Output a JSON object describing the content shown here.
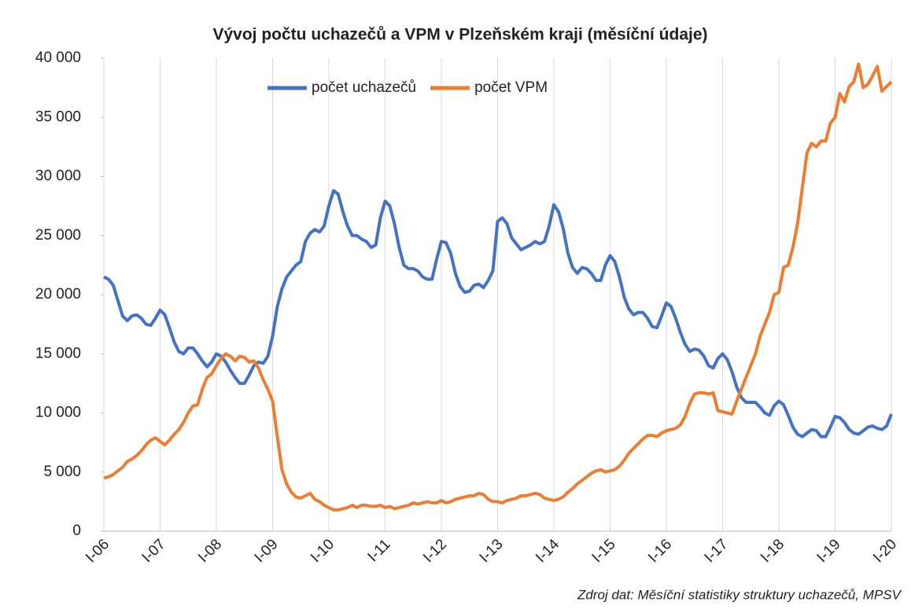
{
  "chart_data": {
    "type": "line",
    "title": "Vývoj počtu uchazečů a VPM v Plzeňském kraji (měsíční údaje)",
    "source": "Zdroj dat: Měsíční statistiky struktury uchazečů, MPSV",
    "legend": "top",
    "grid": "x",
    "categories": [
      "I-06",
      null,
      null,
      null,
      null,
      null,
      null,
      null,
      null,
      null,
      null,
      null,
      "I-07",
      null,
      null,
      null,
      null,
      null,
      null,
      null,
      null,
      null,
      null,
      null,
      "I-08",
      null,
      null,
      null,
      null,
      null,
      null,
      null,
      null,
      null,
      null,
      null,
      "I-09",
      null,
      null,
      null,
      null,
      null,
      null,
      null,
      null,
      null,
      null,
      null,
      "I-10",
      null,
      null,
      null,
      null,
      null,
      null,
      null,
      null,
      null,
      null,
      null,
      "I-11",
      null,
      null,
      null,
      null,
      null,
      null,
      null,
      null,
      null,
      null,
      null,
      "I-12",
      null,
      null,
      null,
      null,
      null,
      null,
      null,
      null,
      null,
      null,
      null,
      "I-13",
      null,
      null,
      null,
      null,
      null,
      null,
      null,
      null,
      null,
      null,
      null,
      "I-14",
      null,
      null,
      null,
      null,
      null,
      null,
      null,
      null,
      null,
      null,
      null,
      "I-15",
      null,
      null,
      null,
      null,
      null,
      null,
      null,
      null,
      null,
      null,
      null,
      "I-16",
      null,
      null,
      null,
      null,
      null,
      null,
      null,
      null,
      null,
      null,
      null,
      "I-17",
      null,
      null,
      null,
      null,
      null,
      null,
      null,
      null,
      null,
      null,
      null,
      "I-18",
      null,
      null,
      null,
      null,
      null,
      null,
      null,
      null,
      null,
      null,
      null,
      "I-19",
      null,
      null,
      null,
      null,
      null,
      null,
      null,
      null,
      null,
      null,
      null,
      "I-20"
    ],
    "series": [
      {
        "name": "počet uchazečů",
        "color": "#4472c4",
        "values": [
          21500,
          21300,
          20800,
          19500,
          18200,
          17800,
          18200,
          18300,
          18000,
          17500,
          17400,
          18000,
          18700,
          18300,
          17200,
          16000,
          15200,
          15000,
          15500,
          15500,
          15000,
          14400,
          13900,
          14300,
          15000,
          14800,
          14300,
          13600,
          13000,
          12500,
          12500,
          13200,
          14000,
          14300,
          14200,
          14800,
          16500,
          19000,
          20500,
          21500,
          22000,
          22500,
          22800,
          24500,
          25200,
          25500,
          25300,
          25800,
          27500,
          28800,
          28500,
          27000,
          25800,
          25000,
          25000,
          24700,
          24500,
          24000,
          24200,
          26500,
          27900,
          27500,
          26000,
          24000,
          22500,
          22200,
          22200,
          22000,
          21500,
          21300,
          21300,
          23000,
          24500,
          24400,
          23500,
          21800,
          20700,
          20200,
          20300,
          20800,
          20900,
          20600,
          21200,
          22000,
          26200,
          26500,
          26000,
          24800,
          24300,
          23800,
          24000,
          24200,
          24500,
          24300,
          24500,
          25800,
          27600,
          27000,
          25600,
          23500,
          22300,
          21800,
          22300,
          22200,
          21800,
          21200,
          21200,
          22500,
          23300,
          22800,
          21500,
          19800,
          18800,
          18300,
          18500,
          18500,
          18000,
          17300,
          17200,
          18200,
          19300,
          19000,
          18000,
          16800,
          15800,
          15200,
          15400,
          15300,
          14800,
          14000,
          13800,
          14600,
          15000,
          14500,
          13500,
          12200,
          11300,
          10900,
          10900,
          10900,
          10500,
          10000,
          9800,
          10600,
          11000,
          10700,
          9800,
          8800,
          8200,
          8000,
          8300,
          8600,
          8500,
          8000,
          8000,
          8800,
          9700,
          9600,
          9200,
          8600,
          8300,
          8200,
          8500,
          8800,
          8900,
          8700,
          8600,
          8900,
          9900
        ]
      },
      {
        "name": "počet VPM",
        "color": "#ed7d31",
        "values": [
          4500,
          4600,
          4800,
          5100,
          5400,
          5900,
          6100,
          6400,
          6800,
          7300,
          7700,
          7900,
          7600,
          7300,
          7700,
          8200,
          8600,
          9200,
          10000,
          10600,
          10700,
          12000,
          13000,
          13300,
          14000,
          14600,
          15000,
          14800,
          14400,
          14800,
          14700,
          14300,
          14400,
          13800,
          12800,
          12000,
          11000,
          8000,
          5200,
          4000,
          3300,
          2900,
          2800,
          3000,
          3200,
          2700,
          2500,
          2200,
          2000,
          1800,
          1800,
          1900,
          2000,
          2200,
          2000,
          2200,
          2200,
          2100,
          2100,
          2200,
          2000,
          2100,
          1900,
          2000,
          2100,
          2200,
          2400,
          2300,
          2400,
          2500,
          2400,
          2400,
          2600,
          2400,
          2500,
          2700,
          2800,
          2900,
          3000,
          3000,
          3200,
          3100,
          2700,
          2500,
          2500,
          2400,
          2600,
          2700,
          2800,
          3000,
          3000,
          3100,
          3200,
          3100,
          2800,
          2700,
          2600,
          2700,
          2900,
          3300,
          3600,
          4000,
          4300,
          4600,
          4900,
          5100,
          5200,
          5000,
          5100,
          5200,
          5500,
          6000,
          6600,
          7000,
          7400,
          7800,
          8100,
          8100,
          8000,
          8300,
          8500,
          8600,
          8700,
          9000,
          9700,
          10800,
          11600,
          11700,
          11700,
          11600,
          11700,
          10200,
          10100,
          10000,
          9900,
          11000,
          12000,
          13000,
          14000,
          15000,
          16500,
          17500,
          18500,
          20000,
          20200,
          22300,
          22500,
          24000,
          26000,
          29000,
          32000,
          32800,
          32500,
          33000,
          33000,
          34500,
          35000,
          37000,
          36300,
          37600,
          38000,
          39500,
          37500,
          37800,
          38500,
          39300,
          37200,
          37600,
          38000
        ]
      }
    ],
    "ylim": [
      0,
      40000
    ],
    "yticks": [
      0,
      {
        "value": 5000,
        "label": "5 000"
      },
      {
        "value": 10000,
        "label": "10 000"
      },
      {
        "value": 15000,
        "label": "15 000"
      },
      {
        "value": 20000,
        "label": "20 000"
      },
      {
        "value": 25000,
        "label": "25 000"
      },
      {
        "value": 30000,
        "label": "30 000"
      },
      {
        "value": 35000,
        "label": "35 000"
      },
      {
        "value": 40000,
        "label": "40 000"
      }
    ]
  }
}
